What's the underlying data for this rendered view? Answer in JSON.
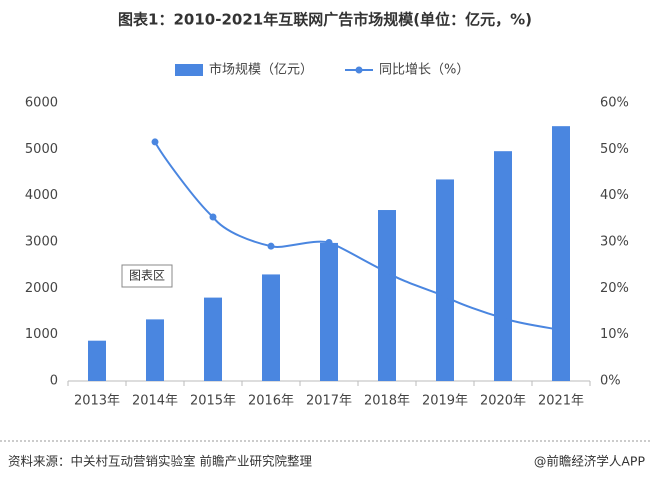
{
  "chart_data": {
    "type": "bar-line",
    "title": "图表1：2010-2021年互联网广告市场规模(单位：亿元，%)",
    "categories": [
      "2013年",
      "2014年",
      "2015年",
      "2016年",
      "2017年",
      "2018年",
      "2019年",
      "2020年",
      "2021年"
    ],
    "series": [
      {
        "name": "市场规模（亿元）",
        "type": "bar",
        "color": "#4a86e0",
        "values": [
          870,
          1330,
          1800,
          2300,
          2980,
          3690,
          4350,
          4960,
          5500
        ]
      },
      {
        "name": "同比增长（%）",
        "type": "line",
        "axis": "y2",
        "color": "#4a86e0",
        "values": [
          null,
          51.6,
          35.4,
          29.1,
          29.9,
          23.5,
          18.3,
          13.6,
          11.0
        ]
      }
    ],
    "ylim": [
      0,
      6000
    ],
    "yticks": [
      0,
      1000,
      2000,
      3000,
      4000,
      5000,
      6000
    ],
    "y2lim": [
      0,
      60
    ],
    "y2ticks": [
      {
        "value": 0,
        "label": "0%"
      },
      {
        "value": 10,
        "label": "10%"
      },
      {
        "value": 20,
        "label": "20%"
      },
      {
        "value": 30,
        "label": "30%"
      },
      {
        "value": 40,
        "label": "40%"
      },
      {
        "value": 50,
        "label": "50%"
      },
      {
        "value": 60,
        "label": "60%"
      }
    ],
    "annotation": "图表区",
    "source": "资料来源：中关村互动营销实验室 前瞻产业研究院整理",
    "brand": "@前瞻经济学人APP"
  }
}
